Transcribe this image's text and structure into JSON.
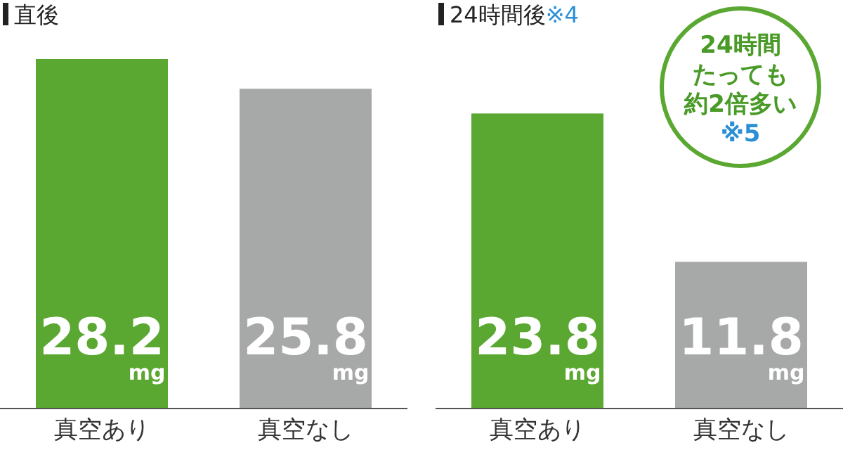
{
  "chart_data": [
    {
      "type": "bar",
      "title": "直後",
      "categories": [
        "真空あり",
        "真空なし"
      ],
      "values": [
        28.2,
        25.8
      ],
      "colors": [
        "#5aa831",
        "#a7a8a8"
      ],
      "value_labels": [
        "28.2 mg",
        "25.8 mg"
      ]
    },
    {
      "type": "bar",
      "title": "24時間後※4",
      "categories": [
        "真空あり",
        "真空なし"
      ],
      "values": [
        23.8,
        11.8
      ],
      "colors": [
        "#5aa831",
        "#a7a8a8"
      ],
      "value_labels": [
        "23.8 mg",
        "11.8 mg"
      ],
      "annotations": [
        "24時間",
        "たっても",
        "約2倍多い",
        "※5"
      ]
    }
  ]
}
